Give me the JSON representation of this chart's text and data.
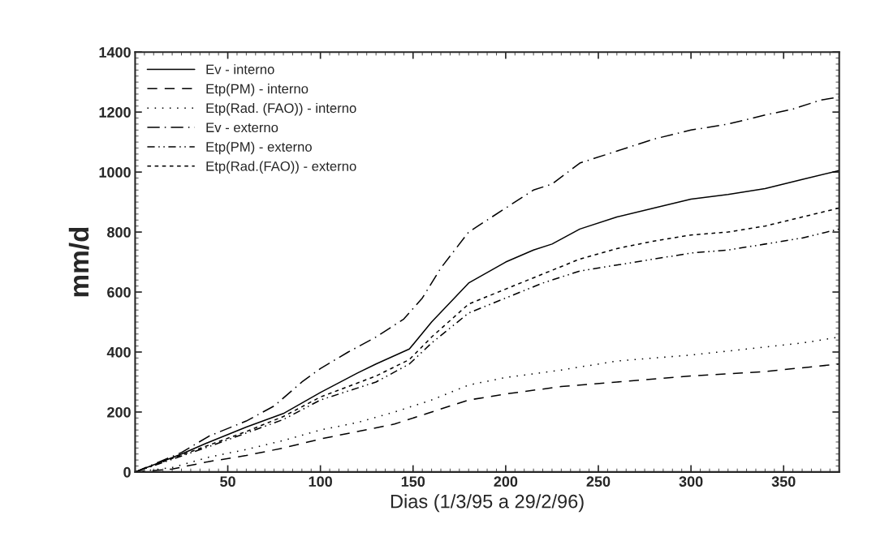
{
  "chart_data": {
    "type": "line",
    "xlabel": "Dias (1/3/95 a 29/2/96)",
    "ylabel": "mm/d",
    "xlim": [
      0,
      380
    ],
    "ylim": [
      0,
      1400
    ],
    "xticks": [
      50,
      100,
      150,
      200,
      250,
      300,
      350
    ],
    "yticks": [
      0,
      200,
      400,
      600,
      800,
      1000,
      1200,
      1400
    ],
    "grid": false,
    "legend": "top left",
    "marker": "none",
    "series": [
      {
        "name": "Ev - interno",
        "color": "#000000",
        "line_style": "solid",
        "x": [
          0,
          25,
          40,
          60,
          80,
          100,
          120,
          130,
          148,
          160,
          180,
          200,
          215,
          225,
          240,
          260,
          280,
          300,
          320,
          340,
          360,
          380
        ],
        "values": [
          0,
          60,
          100,
          150,
          195,
          265,
          330,
          360,
          410,
          500,
          630,
          700,
          740,
          760,
          810,
          850,
          880,
          910,
          925,
          945,
          975,
          1005
        ]
      },
      {
        "name": "Etp(PM) - interno",
        "color": "#000000",
        "line_style": "dashed",
        "x": [
          0,
          20,
          40,
          60,
          80,
          100,
          120,
          140,
          160,
          180,
          200,
          230,
          260,
          300,
          340,
          380
        ],
        "values": [
          0,
          10,
          35,
          55,
          80,
          110,
          135,
          160,
          200,
          240,
          260,
          285,
          300,
          320,
          335,
          360
        ]
      },
      {
        "name": "Etp(Rad. (FAO)) - interno",
        "color": "#000000",
        "line_style": "dotted",
        "x": [
          0,
          20,
          40,
          60,
          80,
          100,
          120,
          140,
          160,
          180,
          200,
          230,
          260,
          300,
          330,
          360,
          380
        ],
        "values": [
          0,
          15,
          50,
          75,
          105,
          140,
          165,
          200,
          240,
          290,
          315,
          340,
          370,
          390,
          410,
          430,
          450
        ]
      },
      {
        "name": "Ev - externo",
        "color": "#000000",
        "line_style": "dashdot",
        "x": [
          0,
          25,
          40,
          60,
          75,
          90,
          100,
          115,
          130,
          145,
          155,
          165,
          180,
          200,
          215,
          225,
          240,
          260,
          280,
          300,
          320,
          340,
          355,
          370,
          380
        ],
        "values": [
          0,
          65,
          120,
          170,
          220,
          300,
          345,
          400,
          450,
          510,
          580,
          680,
          800,
          880,
          940,
          960,
          1030,
          1070,
          1110,
          1140,
          1160,
          1190,
          1210,
          1240,
          1250
        ]
      },
      {
        "name": "Etp(PM) - externo",
        "color": "#000000",
        "line_style": "dashdotdot",
        "x": [
          0,
          40,
          60,
          80,
          100,
          130,
          148,
          160,
          180,
          200,
          220,
          240,
          260,
          280,
          300,
          320,
          340,
          360,
          380
        ],
        "values": [
          0,
          85,
          130,
          175,
          240,
          300,
          360,
          430,
          530,
          580,
          630,
          670,
          690,
          710,
          730,
          740,
          760,
          780,
          810
        ]
      },
      {
        "name": "Etp(Rad.(FAO)) - externo",
        "color": "#000000",
        "line_style": "shortdash",
        "x": [
          0,
          40,
          60,
          80,
          100,
          130,
          148,
          160,
          180,
          200,
          220,
          240,
          260,
          280,
          300,
          320,
          340,
          360,
          380
        ],
        "values": [
          0,
          90,
          135,
          185,
          250,
          320,
          375,
          450,
          560,
          610,
          660,
          710,
          745,
          770,
          790,
          800,
          820,
          850,
          880
        ]
      }
    ]
  }
}
